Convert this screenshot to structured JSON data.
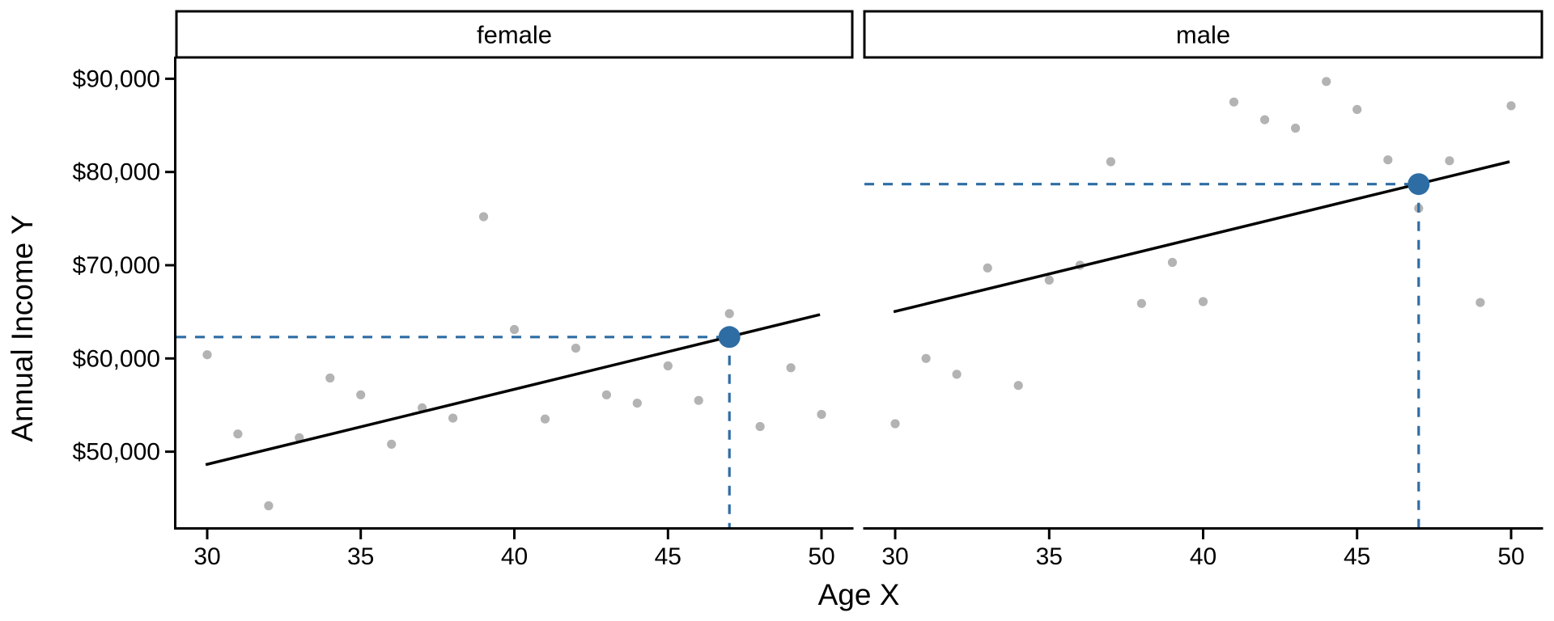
{
  "figure": {
    "kind": "faceted scatter plot with regression lines and highlighted predictions"
  },
  "chart_data": {
    "type": "scatter",
    "xlabel": "Age X",
    "ylabel": "Annual Income Y",
    "xlim": [
      29,
      51
    ],
    "ylim": [
      41900,
      92200
    ],
    "grid": "off",
    "legend": "none",
    "x_ticks": [
      {
        "value": 30,
        "label": "30"
      },
      {
        "value": 35,
        "label": "35"
      },
      {
        "value": 40,
        "label": "40"
      },
      {
        "value": 45,
        "label": "45"
      },
      {
        "value": 50,
        "label": "50"
      }
    ],
    "y_ticks": [
      {
        "value": 50000,
        "label": "$50,000"
      },
      {
        "value": 60000,
        "label": "$60,000"
      },
      {
        "value": 70000,
        "label": "$70,000"
      },
      {
        "value": 80000,
        "label": "$80,000"
      },
      {
        "value": 90000,
        "label": "$90,000"
      }
    ],
    "facets": [
      {
        "label": "female",
        "points": [
          [
            30,
            60400
          ],
          [
            31,
            51900
          ],
          [
            32,
            44200
          ],
          [
            33,
            51500
          ],
          [
            34,
            57900
          ],
          [
            35,
            56100
          ],
          [
            36,
            50800
          ],
          [
            37,
            54700
          ],
          [
            38,
            53600
          ],
          [
            39,
            75200
          ],
          [
            40,
            63100
          ],
          [
            41,
            53500
          ],
          [
            42,
            61100
          ],
          [
            43,
            56100
          ],
          [
            44,
            55200
          ],
          [
            45,
            59200
          ],
          [
            46,
            55500
          ],
          [
            47,
            64800
          ],
          [
            48,
            52700
          ],
          [
            49,
            59000
          ],
          [
            50,
            54000
          ]
        ],
        "regression_line": {
          "x": [
            29.95,
            49.95
          ],
          "y": [
            48600,
            64700
          ]
        },
        "prediction": {
          "age": 47,
          "income": 62300
        }
      },
      {
        "label": "male",
        "points": [
          [
            30,
            53000
          ],
          [
            31,
            60000
          ],
          [
            32,
            58300
          ],
          [
            33,
            69700
          ],
          [
            34,
            57100
          ],
          [
            35,
            68400
          ],
          [
            36,
            70000
          ],
          [
            37,
            81100
          ],
          [
            38,
            65900
          ],
          [
            39,
            70300
          ],
          [
            40,
            66100
          ],
          [
            41,
            87500
          ],
          [
            42,
            85600
          ],
          [
            43,
            84700
          ],
          [
            44,
            89700
          ],
          [
            45,
            86700
          ],
          [
            46,
            81300
          ],
          [
            47,
            76100
          ],
          [
            48,
            81200
          ],
          [
            49,
            66000
          ],
          [
            50,
            87100
          ]
        ],
        "regression_line": {
          "x": [
            29.95,
            49.95
          ],
          "y": [
            65000,
            81100
          ]
        },
        "prediction": {
          "age": 47,
          "income": 78700
        }
      }
    ],
    "colors": {
      "scatter_point": "#b3b3b3",
      "regression_line": "#000000",
      "prediction_point": "#2e6da4",
      "prediction_dashed_line": "#2e6da4",
      "axis": "#000000",
      "strip_background": "#ffffff",
      "strip_border": "#000000",
      "panel_background": "#ffffff"
    }
  }
}
